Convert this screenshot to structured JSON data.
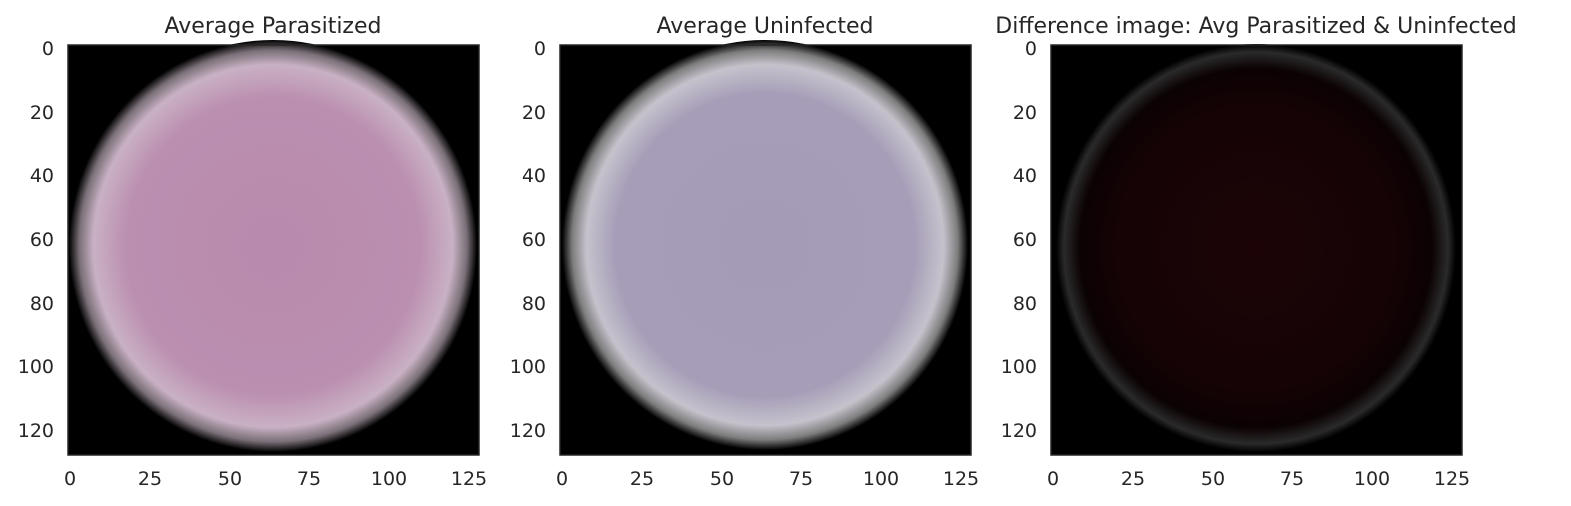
{
  "chart_data": [
    {
      "type": "image",
      "title": "Average Parasitized",
      "image_shape": [
        128,
        128
      ],
      "xlim": [
        0,
        128
      ],
      "ylim": [
        128,
        0
      ],
      "xticks": [
        0,
        25,
        50,
        75,
        100,
        125
      ],
      "yticks": [
        0,
        20,
        40,
        60,
        80,
        100,
        120
      ],
      "center_color": "#bb8fb0",
      "edge_color": "#d2cdd2",
      "background_color": "#000000"
    },
    {
      "type": "image",
      "title": "Average Uninfected",
      "image_shape": [
        128,
        128
      ],
      "xlim": [
        0,
        128
      ],
      "ylim": [
        128,
        0
      ],
      "xticks": [
        0,
        25,
        50,
        75,
        100,
        125
      ],
      "yticks": [
        0,
        20,
        40,
        60,
        80,
        100,
        120
      ],
      "center_color": "#a59cb8",
      "edge_color": "#dcdcdc",
      "background_color": "#000000"
    },
    {
      "type": "image",
      "title": "Difference image: Avg Parasitized & Uninfected",
      "image_shape": [
        128,
        128
      ],
      "xlim": [
        0,
        128
      ],
      "ylim": [
        128,
        0
      ],
      "xticks": [
        0,
        25,
        50,
        75,
        100,
        125
      ],
      "yticks": [
        0,
        20,
        40,
        60,
        80,
        100,
        120
      ],
      "center_color": "#1c0406",
      "edge_color": "#4a4a4a",
      "background_color": "#000000"
    }
  ]
}
